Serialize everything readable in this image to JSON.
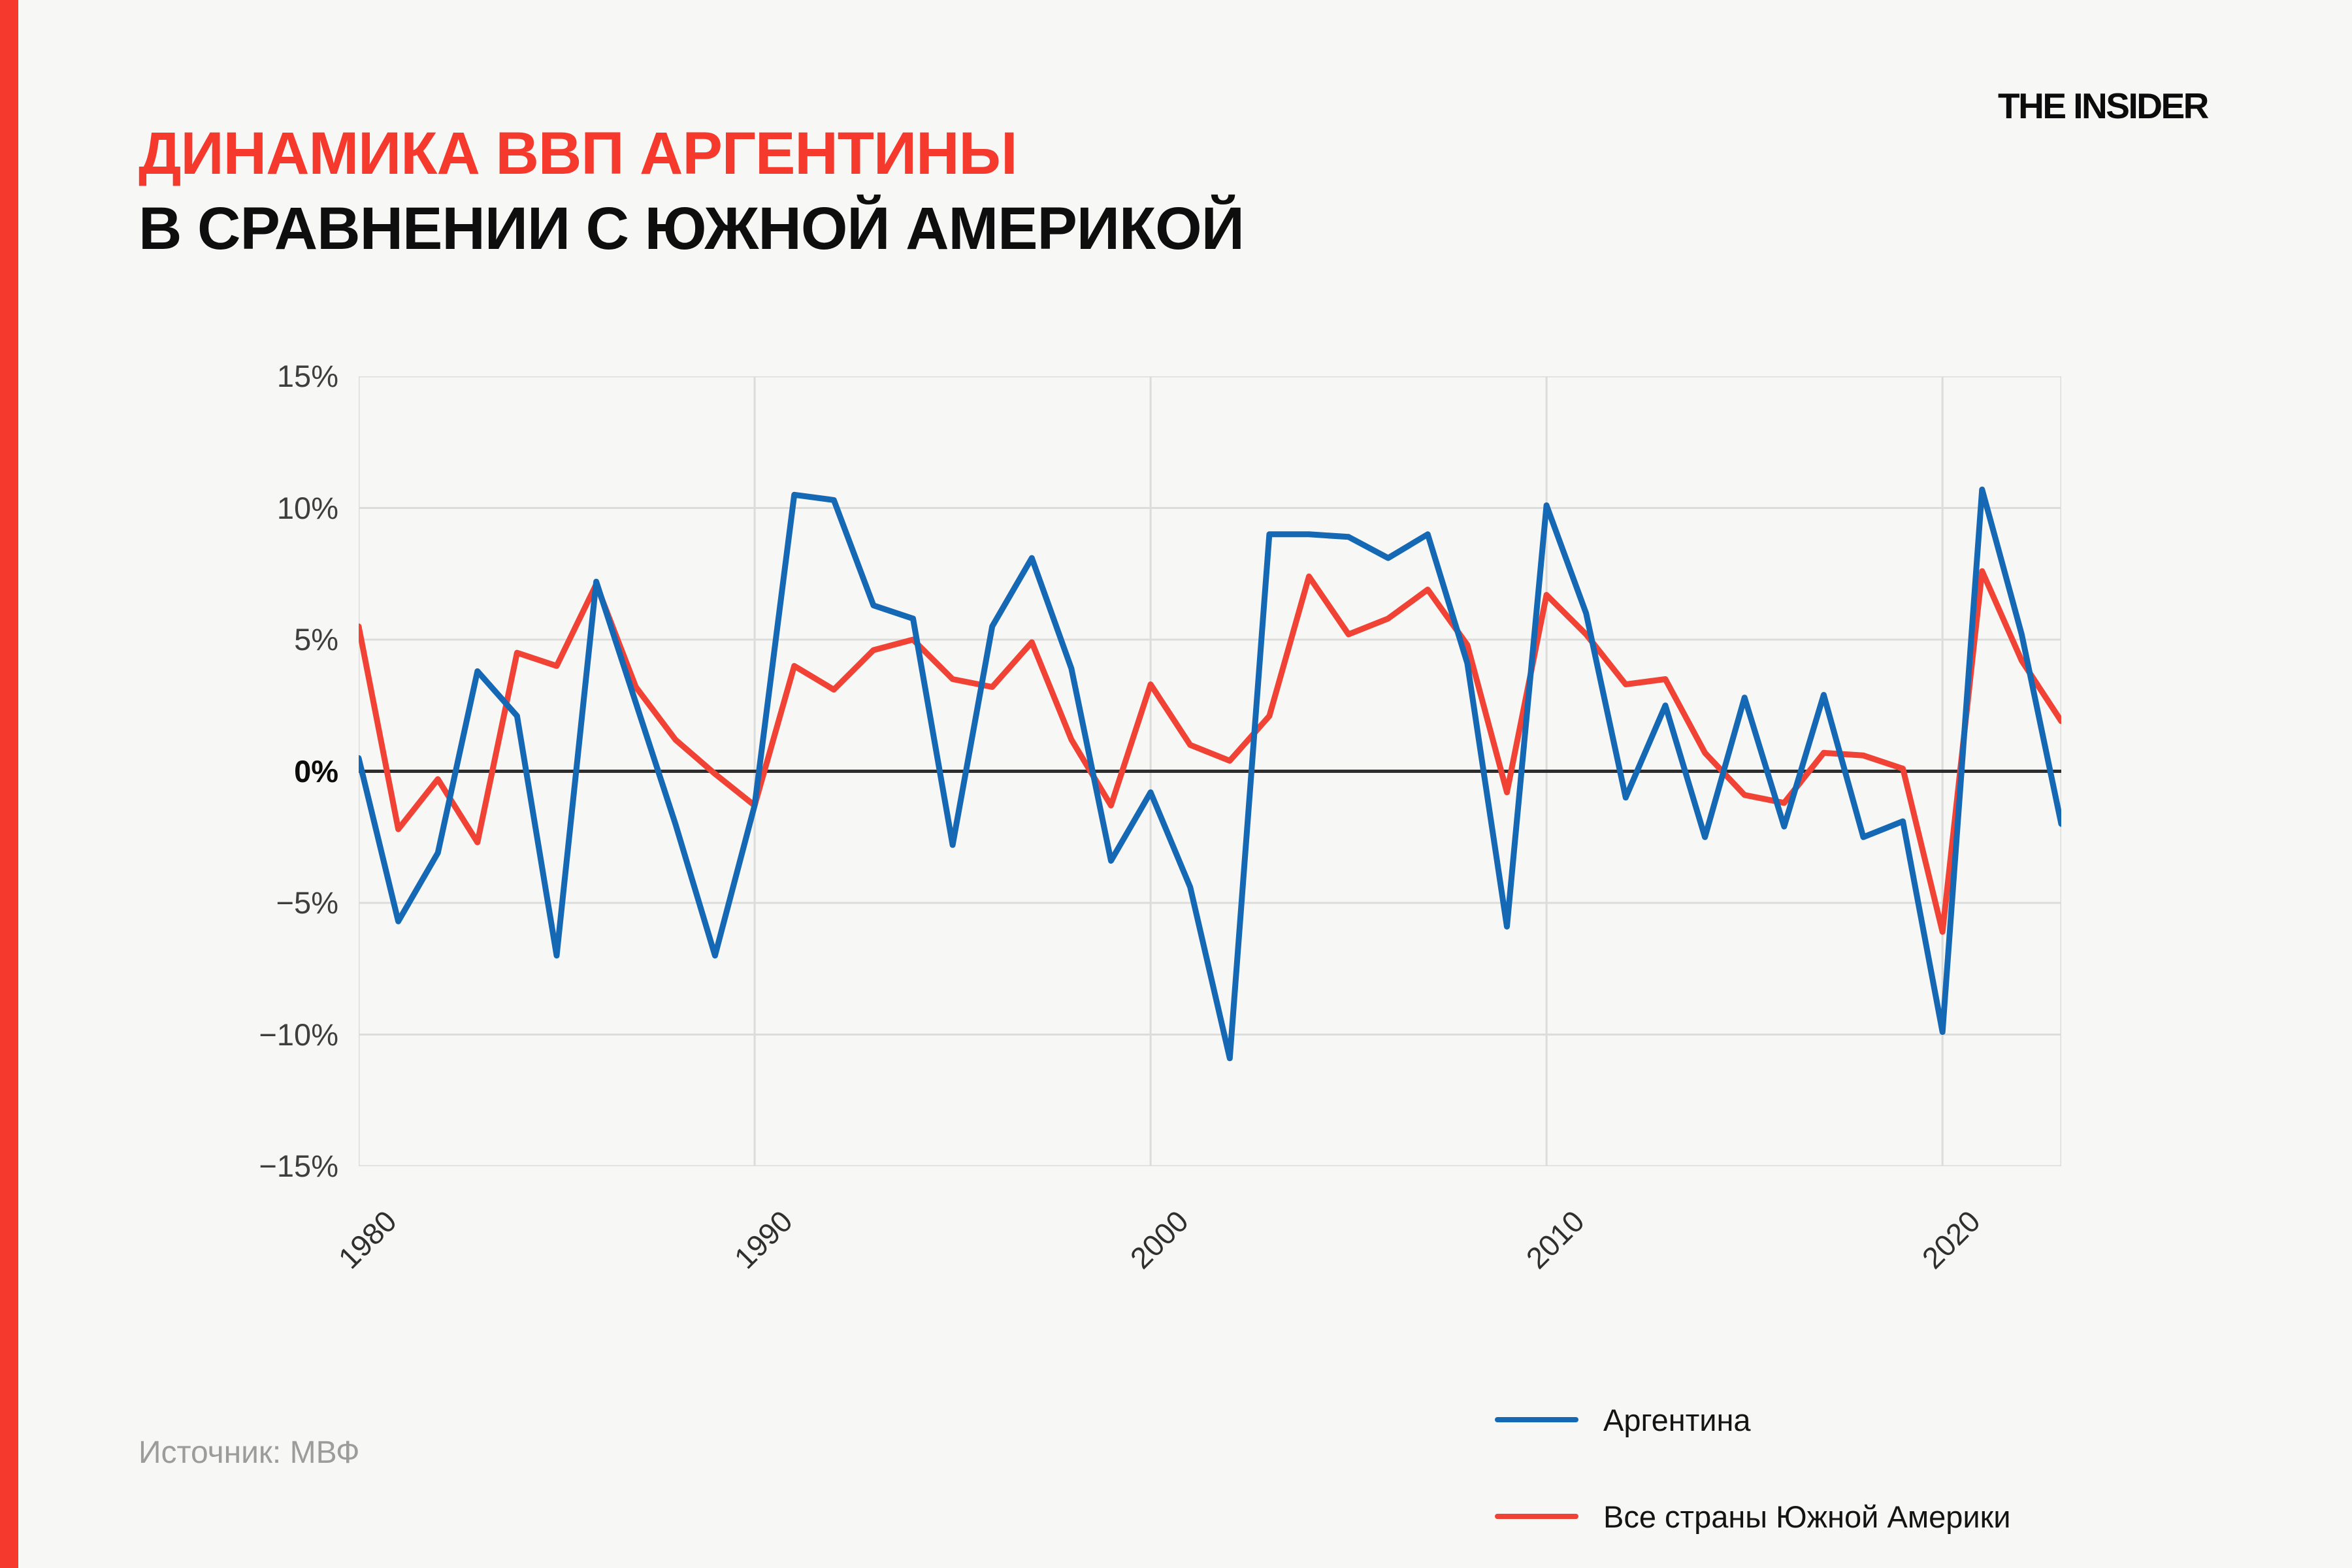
{
  "page": {
    "background": "#f7f7f5",
    "accent_bar_color": "#f5392d"
  },
  "header": {
    "title_line1": "ДИНАМИКА ВВП АРГЕНТИНЫ",
    "title_line1_color": "#f5392d",
    "title_line2": "В СРАВНЕНИИ С ЮЖНОЙ АМЕРИКОЙ",
    "logo": "THE INSIDER"
  },
  "legend": [
    {
      "label": "Аргентина",
      "color": "#1568b3"
    },
    {
      "label": "Все страны Южной Америки",
      "color": "#f04335"
    }
  ],
  "source": {
    "label": "Источник: МВФ"
  },
  "chart_data": {
    "type": "line",
    "title": "Динамика ВВП Аргентины в сравнении с Южной Америкой (рост ВВП, % в год)",
    "x": [
      1980,
      1981,
      1982,
      1983,
      1984,
      1985,
      1986,
      1987,
      1988,
      1989,
      1990,
      1991,
      1992,
      1993,
      1994,
      1995,
      1996,
      1997,
      1998,
      1999,
      2000,
      2001,
      2002,
      2003,
      2004,
      2005,
      2006,
      2007,
      2008,
      2009,
      2010,
      2011,
      2012,
      2013,
      2014,
      2015,
      2016,
      2017,
      2018,
      2019,
      2020,
      2021,
      2022,
      2023
    ],
    "series": [
      {
        "name": "Аргентина",
        "color": "#1568b3",
        "values": [
          0.5,
          -5.7,
          -3.1,
          3.8,
          2.1,
          -7.0,
          7.2,
          2.6,
          -2.0,
          -7.0,
          -1.3,
          10.5,
          10.3,
          6.3,
          5.8,
          -2.8,
          5.5,
          8.1,
          3.9,
          -3.4,
          -0.8,
          -4.4,
          -10.9,
          9.0,
          9.0,
          8.9,
          8.1,
          9.0,
          4.1,
          -5.9,
          10.1,
          6.0,
          -1.0,
          2.5,
          -2.5,
          2.8,
          -2.1,
          2.9,
          -2.5,
          -1.9,
          -9.9,
          10.7,
          5.2,
          -2.0
        ]
      },
      {
        "name": "Все страны Южной Америки",
        "color": "#f04335",
        "values": [
          5.5,
          -2.2,
          -0.3,
          -2.7,
          4.5,
          4.0,
          7.1,
          3.2,
          1.2,
          -0.1,
          -1.3,
          4.0,
          3.1,
          4.6,
          5.0,
          3.5,
          3.2,
          4.9,
          1.2,
          -1.3,
          3.3,
          1.0,
          0.4,
          2.1,
          7.4,
          5.2,
          5.8,
          6.9,
          4.8,
          -0.8,
          6.7,
          5.2,
          3.3,
          3.5,
          0.7,
          -0.9,
          -1.2,
          0.7,
          0.6,
          0.1,
          -6.1,
          7.6,
          4.2,
          1.9
        ]
      }
    ],
    "xlabel": "",
    "ylabel": "",
    "ylim": [
      -15,
      15
    ],
    "yticks": [
      {
        "v": 15,
        "label": "15%"
      },
      {
        "v": 10,
        "label": "10%"
      },
      {
        "v": 5,
        "label": "5%"
      },
      {
        "v": 0,
        "label": "0%"
      },
      {
        "v": -5,
        "label": "−5%"
      },
      {
        "v": -10,
        "label": "−10%"
      },
      {
        "v": -15,
        "label": "−15%"
      }
    ],
    "xticks": [
      1980,
      1990,
      2000,
      2010,
      2020
    ],
    "grid": true,
    "grid_color": "#dcdcda",
    "zero_line_color": "#2d2d2d",
    "legend_position": "bottom-right"
  }
}
